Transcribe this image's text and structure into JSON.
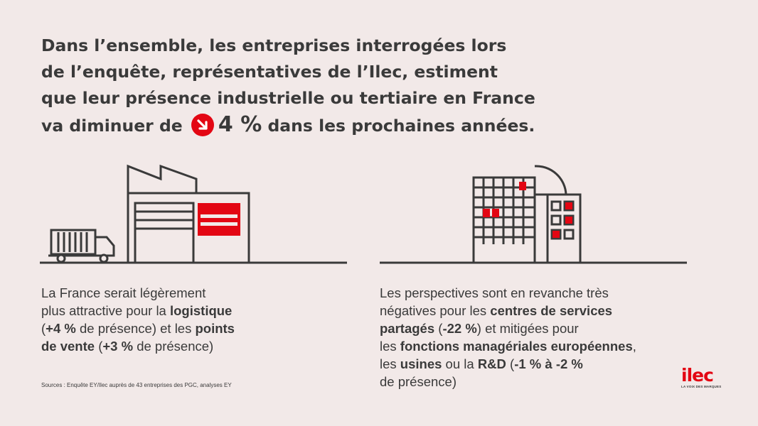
{
  "headline": {
    "line1": "Dans l’ensemble, les entreprises interrogées lors",
    "line2": "de l’enquête, représentatives de l’Ilec, estiment",
    "line3": "que leur présence industrielle ou tertiaire en France",
    "line4_before": "va diminuer de",
    "line4_value": "4 %",
    "line4_after": "dans les prochaines années."
  },
  "left": {
    "l1": "La France serait légèrement",
    "l2_a": "plus attractive pour la ",
    "l2_b": "logistique",
    "l3_a": "(",
    "l3_b": "+4 %",
    "l3_c": " de présence) et les ",
    "l3_d": "points",
    "l4_a": "de vente",
    "l4_b": " (",
    "l4_c": "+3 %",
    "l4_d": " de présence)"
  },
  "right": {
    "l1": "Les perspectives sont en revanche très",
    "l2_a": "négatives pour les ",
    "l2_b": "centres de services",
    "l3_a": "partagés",
    "l3_b": " (",
    "l3_c": "-22 %",
    "l3_d": ") et mitigées pour",
    "l4_a": "les ",
    "l4_b": "fonctions managériales européennes",
    "l4_c": ",",
    "l5_a": "les ",
    "l5_b": "usines",
    "l5_c": " ou la ",
    "l5_d": "R&D",
    "l5_e": " (",
    "l5_f": "-1 % à -2 %",
    "l6": "de présence)"
  },
  "sources": "Sources : Enquête EY/Ilec auprès de 43 entreprises des PGC, analyses EY",
  "logo": {
    "word": "ilec",
    "tagline": "LA VOIX DES MARQUES"
  },
  "icons": [
    "arrow-down-right-icon",
    "factory-truck-illustration",
    "office-building-illustration"
  ],
  "colors": {
    "accent": "#e30613",
    "ink": "#3a3a3a",
    "background": "#f2e9e8"
  }
}
